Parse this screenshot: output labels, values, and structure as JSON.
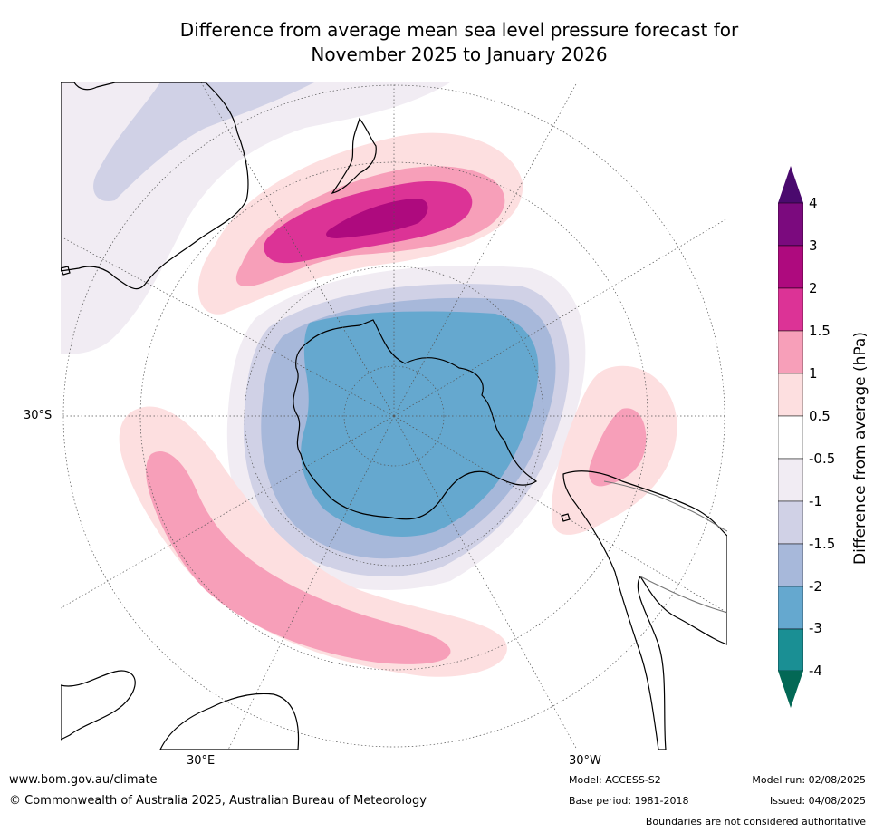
{
  "title_line1": "Difference from average mean sea level pressure forecast for",
  "title_line2": "November 2025 to January 2026",
  "map": {
    "projection": "south-polar-stereographic",
    "center_label": "",
    "lat_labels": {
      "left": "30°S",
      "bottom_left": "30°E",
      "bottom_right": "30°W"
    },
    "anomaly_regions": [
      {
        "name": "south-pacific-new-zealand-high",
        "max_hPa": 3
      },
      {
        "name": "antarctic-low",
        "min_hPa": -3
      },
      {
        "name": "indian-ocean-high",
        "max_hPa": 1.5
      },
      {
        "name": "south-atlantic-high",
        "max_hPa": 1.5
      },
      {
        "name": "tasman-low",
        "min_hPa": -1.5
      }
    ]
  },
  "colorbar": {
    "label": "Difference from average (hPa)",
    "ticks": [
      "4",
      "3",
      "2",
      "1.5",
      "1",
      "0.5",
      "-0.5",
      "-1",
      "-1.5",
      "-2",
      "-3",
      "-4"
    ],
    "colors": [
      "#4a0a6e",
      "#7b0a7e",
      "#ae0a7e",
      "#dc3396",
      "#f79fb9",
      "#fddfe0",
      "#ffffff",
      "#f1ecf3",
      "#d0d1e6",
      "#a7b8da",
      "#65a8cf",
      "#1a8f94",
      "#036855"
    ]
  },
  "footer": {
    "url": "www.bom.gov.au/climate",
    "copyright": "© Commonwealth of Australia 2025, Australian Bureau of Meteorology",
    "model": "Model: ACCESS-S2",
    "base_period": "Base period: 1981-2018",
    "model_run": "Model run: 02/08/2025",
    "issued": "Issued: 04/08/2025",
    "disclaimer": "Boundaries are not considered authoritative"
  }
}
